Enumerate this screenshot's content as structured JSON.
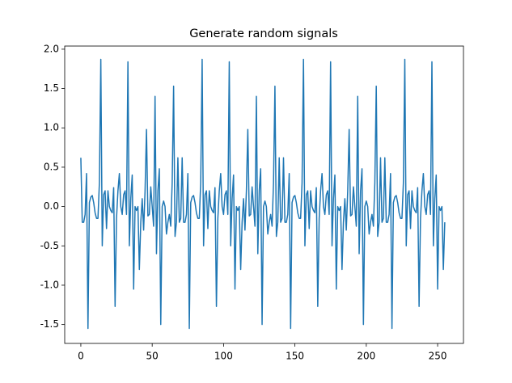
{
  "chart_data": {
    "type": "line",
    "title": "Generate random signals",
    "xlim": [
      -11.3,
      268.1
    ],
    "xticks": [
      0,
      50,
      100,
      150,
      200,
      250
    ],
    "ylim": [
      -1.74,
      2.04
    ],
    "yticks": [
      {
        "value": -1.5,
        "label": "-1.5"
      },
      {
        "value": -1,
        "label": "-1.0"
      },
      {
        "value": -0.5,
        "label": "-0.5"
      },
      {
        "value": 0,
        "label": "0.0"
      },
      0.5,
      {
        "value": 1,
        "label": "1.0"
      },
      1.5,
      {
        "value": 2,
        "label": "2.0"
      }
    ],
    "series": [
      {
        "color": "#1f77b4",
        "values": [
          0.62,
          -0.2,
          -0.2,
          -0.1,
          0.42,
          -1.55,
          0.05,
          0.12,
          0.14,
          0.05,
          -0.08,
          -0.15,
          -0.15,
          0.3,
          1.87,
          -0.5,
          0.15,
          0.2,
          -0.28,
          0.2,
          0,
          -0.05,
          -0.08,
          0.24,
          -1.27,
          -0.15,
          0.2,
          0.42,
          0,
          -0.1,
          0.15,
          0.2,
          -0.1,
          1.84,
          -0.5,
          0.1,
          0.4,
          -1.05,
          0,
          -0.05,
          0,
          -0.8,
          -0.2,
          0.1,
          -0.3,
          0.2,
          0.98,
          -0.12,
          -0.1,
          0.25,
          0,
          -0.25,
          1.4,
          -0.6,
          0.2,
          0.48,
          -1.5,
          0,
          0.07,
          0,
          -0.35,
          -0.2,
          -0.1,
          -0.25,
          0.3,
          1.53,
          -0.38,
          -0.2,
          0.62,
          -0.2,
          -0.15,
          0.62,
          -0.2,
          -0.2,
          -0.1,
          0.42,
          -1.55,
          0.05,
          0.12,
          0.14,
          0.05,
          -0.08,
          -0.15,
          -0.15,
          0.3,
          1.87,
          -0.5,
          0.15,
          0.2,
          -0.28,
          0.2,
          0,
          -0.05,
          -0.08,
          0.24,
          -1.27,
          -0.15,
          0.2,
          0.42,
          0,
          -0.1,
          0.15,
          0.2,
          -0.1,
          1.84,
          -0.5,
          0.1,
          0.4,
          -1.05,
          0,
          -0.05,
          0,
          -0.8,
          -0.2,
          0.1,
          -0.3,
          0.2,
          0.98,
          -0.12,
          -0.1,
          0.25,
          0,
          -0.25,
          1.4,
          -0.6,
          0.2,
          0.48,
          -1.5,
          0,
          0.07,
          0,
          -0.35,
          -0.2,
          -0.1,
          -0.25,
          0.3,
          1.53,
          -0.38,
          -0.2,
          0.62,
          -0.2,
          -0.15,
          0.62,
          -0.2,
          -0.2,
          -0.1,
          0.42,
          -1.55,
          0.05,
          0.12,
          0.14,
          0.05,
          -0.08,
          -0.15,
          -0.15,
          0.3,
          1.87,
          -0.5,
          0.15,
          0.2,
          -0.28,
          0.2,
          0,
          -0.05,
          -0.08,
          0.24,
          -1.27,
          -0.15,
          0.2,
          0.42,
          0,
          -0.1,
          0.15,
          0.2,
          -0.1,
          1.84,
          -0.5,
          0.1,
          0.4,
          -1.05,
          0,
          -0.05,
          0,
          -0.8,
          -0.2,
          0.1,
          -0.3,
          0.2,
          0.98,
          -0.12,
          -0.1,
          0.25,
          0,
          -0.25,
          1.4,
          -0.6,
          0.2,
          0.48,
          -1.5,
          0,
          0.07,
          0,
          -0.35,
          -0.2,
          -0.1,
          -0.25,
          0.3,
          1.53,
          -0.38,
          -0.2,
          0.62,
          -0.2,
          -0.15,
          0.62,
          -0.2,
          -0.2,
          -0.1,
          0.42,
          -1.55,
          0.05,
          0.12,
          0.14,
          0.05,
          -0.08,
          -0.15,
          -0.15,
          0.3,
          1.87,
          -0.5,
          0.15,
          0.2,
          -0.28,
          0.2,
          0,
          -0.05,
          -0.08,
          0.24,
          -1.27,
          -0.15,
          0.2,
          0.42,
          0,
          -0.1,
          0.15,
          0.2,
          -0.1,
          1.84,
          -0.5,
          0.1,
          0.4,
          -1.05,
          0,
          -0.05,
          0,
          -0.8,
          -0.2
        ]
      }
    ]
  }
}
